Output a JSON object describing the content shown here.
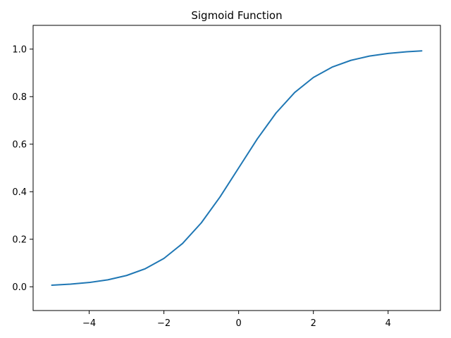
{
  "chart_data": {
    "type": "line",
    "title": "Sigmoid Function",
    "xlabel": "",
    "ylabel": "",
    "xlim": [
      -5.5,
      5.4
    ],
    "ylim": [
      -0.1,
      1.1
    ],
    "x_ticks": [
      -4,
      -2,
      0,
      2,
      4
    ],
    "x_tick_labels": [
      "−4",
      "−2",
      "0",
      "2",
      "4"
    ],
    "y_ticks": [
      0.0,
      0.2,
      0.4,
      0.6,
      0.8,
      1.0
    ],
    "y_tick_labels": [
      "0.0",
      "0.2",
      "0.4",
      "0.6",
      "0.8",
      "1.0"
    ],
    "grid": false,
    "series": [
      {
        "color": "#1f77b4",
        "x": [
          -5.0,
          -4.5,
          -4.0,
          -3.5,
          -3.0,
          -2.5,
          -2.0,
          -1.5,
          -1.0,
          -0.5,
          0.0,
          0.5,
          1.0,
          1.5,
          2.0,
          2.5,
          3.0,
          3.5,
          4.0,
          4.5,
          4.9
        ],
        "y": [
          0.0067,
          0.011,
          0.018,
          0.0293,
          0.0474,
          0.0759,
          0.1192,
          0.1824,
          0.2689,
          0.3775,
          0.5,
          0.6225,
          0.7311,
          0.8176,
          0.8808,
          0.9241,
          0.9526,
          0.9707,
          0.982,
          0.989,
          0.9926
        ]
      }
    ]
  }
}
